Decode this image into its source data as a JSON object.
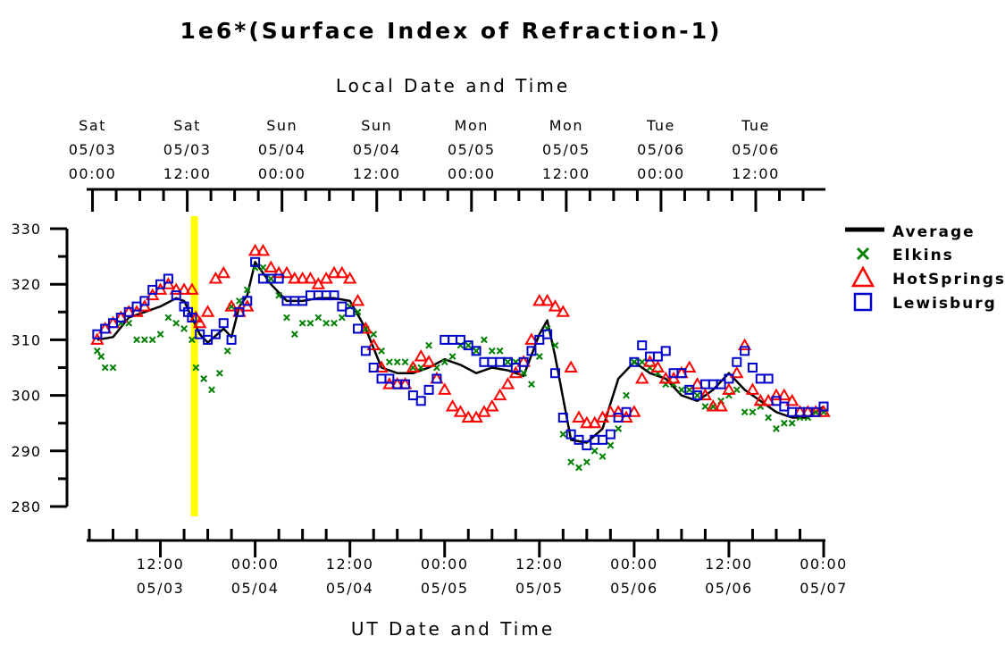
{
  "chart_data": {
    "type": "scatter",
    "title": "1e6*(Surface Index of Refraction-1)",
    "top_axis_label": "Local Date and Time",
    "xlabel": "UT Date and Time",
    "ylabel": "",
    "ylim": [
      280,
      330
    ],
    "yticks": [
      280,
      290,
      300,
      310,
      320,
      330
    ],
    "xlim": [
      "05/03 03:00",
      "05/07 00:00"
    ],
    "x_units": "UT hours from 05/03 00:00",
    "bottom_ticks": [
      {
        "time": "12:00",
        "date": "05/03",
        "hour": 12
      },
      {
        "time": "00:00",
        "date": "05/04",
        "hour": 24
      },
      {
        "time": "12:00",
        "date": "05/04",
        "hour": 36
      },
      {
        "time": "00:00",
        "date": "05/05",
        "hour": 48
      },
      {
        "time": "12:00",
        "date": "05/05",
        "hour": 60
      },
      {
        "time": "00:00",
        "date": "05/06",
        "hour": 72
      },
      {
        "time": "12:00",
        "date": "05/06",
        "hour": 84
      },
      {
        "time": "00:00",
        "date": "05/07",
        "hour": 96
      }
    ],
    "top_ticks": [
      {
        "day": "Sat",
        "date": "05/03",
        "time": "00:00",
        "hour": 3.4
      },
      {
        "day": "Sat",
        "date": "05/03",
        "time": "12:00",
        "hour": 15.4
      },
      {
        "day": "Sun",
        "date": "05/04",
        "time": "00:00",
        "hour": 27.4
      },
      {
        "day": "Sun",
        "date": "05/04",
        "time": "12:00",
        "hour": 39.4
      },
      {
        "day": "Mon",
        "date": "05/05",
        "time": "00:00",
        "hour": 51.4
      },
      {
        "day": "Mon",
        "date": "05/05",
        "time": "12:00",
        "hour": 63.4
      },
      {
        "day": "Tue",
        "date": "05/06",
        "time": "00:00",
        "hour": 75.4
      },
      {
        "day": "Tue",
        "date": "05/06",
        "time": "12:00",
        "hour": 87.4
      }
    ],
    "highlight": {
      "hour": 16.3,
      "color": "#ffff00"
    },
    "legend": {
      "placement": "right",
      "entries": [
        "Average",
        "Elkins",
        "HotSprings",
        "Lewisburg"
      ]
    },
    "series": [
      {
        "name": "Average",
        "style": "line",
        "color": "#000000",
        "x": [
          4,
          6,
          8,
          10,
          12,
          14,
          15,
          16,
          17,
          18,
          20,
          21,
          22,
          23,
          24,
          26,
          28,
          30,
          32,
          34,
          36,
          38,
          40,
          42,
          44,
          46,
          48,
          50,
          52,
          54,
          56,
          58,
          60,
          61,
          62,
          64,
          66,
          68,
          70,
          72,
          74,
          76,
          78,
          80,
          82,
          84,
          86,
          88,
          90,
          92,
          94,
          96
        ],
        "y": [
          310,
          310.5,
          314,
          315,
          316,
          317.5,
          317,
          314,
          311,
          309.5,
          312,
          310.5,
          316,
          318,
          324,
          320,
          317,
          317,
          317.5,
          317.5,
          317,
          312,
          305,
          304,
          304,
          305,
          306.5,
          305.5,
          304,
          305,
          304.5,
          303.5,
          311,
          313.5,
          307,
          292,
          291.5,
          294,
          303,
          306,
          304,
          303,
          300,
          299,
          301,
          304,
          301,
          299,
          297,
          296,
          296,
          298
        ]
      },
      {
        "name": "Elkins",
        "style": "x",
        "color": "#008000",
        "x": [
          4,
          4.5,
          5,
          6,
          7,
          8,
          9,
          10,
          11,
          12,
          13,
          14,
          15,
          16,
          16.5,
          17.5,
          18.5,
          19.5,
          20.5,
          21,
          22,
          23,
          24,
          25,
          26,
          27,
          28,
          29,
          30,
          31,
          32,
          33,
          34,
          35,
          36,
          37,
          38,
          39,
          40,
          41,
          42,
          43,
          44,
          45,
          46,
          47,
          48,
          49,
          50,
          51,
          52,
          53,
          54,
          55,
          56,
          57,
          58,
          59,
          60,
          61,
          62,
          63,
          64,
          65,
          66,
          67,
          68,
          69,
          70,
          71,
          72,
          73,
          74,
          75,
          76,
          77,
          78,
          79,
          80,
          81,
          82,
          83,
          84,
          85,
          86,
          87,
          88,
          89,
          90,
          91,
          92,
          93,
          94,
          95,
          96
        ],
        "y": [
          308,
          307,
          305,
          305,
          313,
          313,
          310,
          310,
          310,
          311,
          314,
          313,
          312,
          310,
          305,
          303,
          301,
          304,
          308,
          316,
          317,
          319,
          323,
          323,
          321,
          318,
          314,
          311,
          313,
          313,
          314,
          313,
          313,
          314,
          316,
          315,
          312,
          311,
          308,
          306,
          306,
          306,
          305,
          305,
          309,
          305,
          306,
          307,
          309,
          309,
          308,
          310,
          308,
          308,
          306,
          306,
          304,
          302,
          307,
          312,
          309,
          293,
          288,
          287,
          288,
          290,
          289,
          291,
          294,
          300,
          306,
          306,
          305,
          304,
          302,
          302,
          301,
          301,
          300,
          298,
          298,
          299,
          300,
          301,
          297,
          297,
          298,
          296,
          294,
          295,
          295,
          296,
          296,
          297,
          297
        ]
      },
      {
        "name": "HotSprings",
        "style": "triangle",
        "color": "#ff0000",
        "x": [
          4,
          5,
          6,
          7,
          8,
          9,
          10,
          11,
          12,
          13,
          14,
          15,
          16,
          16.5,
          17,
          18,
          19,
          20,
          21,
          22,
          23,
          24,
          25,
          26,
          27,
          28,
          29,
          30,
          31,
          32,
          33,
          34,
          35,
          36,
          37,
          38,
          39,
          40,
          41,
          42,
          43,
          44,
          45,
          46,
          47,
          48,
          49,
          50,
          51,
          52,
          53,
          54,
          55,
          56,
          57,
          58,
          59,
          60,
          61,
          62,
          63,
          64,
          65,
          66,
          67,
          68,
          69,
          70,
          71,
          72,
          73,
          74,
          75,
          76,
          77,
          78,
          79,
          80,
          81,
          82,
          83,
          84,
          85,
          86,
          87,
          88,
          89,
          90,
          91,
          92,
          93,
          94,
          95,
          96
        ],
        "y": [
          310,
          312,
          313,
          314,
          315,
          315,
          316,
          318,
          319,
          320,
          319,
          319,
          319,
          314,
          313,
          315,
          321,
          322,
          316,
          315,
          316,
          326,
          326,
          323,
          322,
          322,
          321,
          321,
          321,
          320,
          321,
          322,
          322,
          321,
          317,
          312,
          309,
          305,
          302,
          302,
          302,
          305,
          307,
          306,
          303,
          301,
          298,
          297,
          296,
          296,
          297,
          298,
          300,
          302,
          304,
          306,
          310,
          317,
          317,
          316,
          315,
          305,
          296,
          295,
          295,
          296,
          297,
          297,
          296,
          297,
          303,
          306,
          305,
          303,
          303,
          304,
          305,
          302,
          300,
          298,
          298,
          301,
          304,
          309,
          301,
          299,
          299,
          300,
          300,
          299,
          297,
          297,
          297,
          297
        ]
      },
      {
        "name": "Lewisburg",
        "style": "square",
        "color": "#0000cc",
        "x": [
          4,
          5,
          6,
          7,
          8,
          9,
          10,
          11,
          12,
          13,
          14,
          15,
          15.5,
          16,
          17,
          18,
          19,
          20,
          21,
          22,
          23,
          24,
          25,
          26,
          27,
          28,
          29,
          30,
          31,
          32,
          33,
          34,
          35,
          36,
          37,
          38,
          39,
          40,
          41,
          42,
          43,
          44,
          45,
          46,
          47,
          48,
          49,
          50,
          51,
          52,
          53,
          54,
          55,
          56,
          57,
          58,
          59,
          60,
          61,
          62,
          63,
          64,
          65,
          66,
          67,
          68,
          69,
          70,
          71,
          72,
          73,
          74,
          75,
          76,
          77,
          78,
          79,
          80,
          81,
          82,
          83,
          84,
          85,
          86,
          87,
          88,
          89,
          90,
          91,
          92,
          93,
          94,
          95,
          96
        ],
        "y": [
          311,
          312,
          313,
          314,
          315,
          316,
          317,
          319,
          320,
          321,
          318,
          316,
          315,
          314,
          311,
          310,
          311,
          313,
          310,
          315,
          317,
          324,
          321,
          321,
          321,
          317,
          317,
          317,
          318,
          318,
          318,
          318,
          316,
          315,
          312,
          308,
          305,
          303,
          303,
          302,
          302,
          300,
          299,
          301,
          303,
          310,
          310,
          310,
          309,
          308,
          306,
          306,
          306,
          306,
          305,
          306,
          308,
          310,
          311,
          304,
          296,
          293,
          292,
          291,
          292,
          292,
          293,
          296,
          297,
          306,
          309,
          307,
          307,
          308,
          304,
          304,
          301,
          300,
          302,
          302,
          302,
          303,
          306,
          308,
          305,
          303,
          303,
          299,
          298,
          297,
          297,
          297,
          297,
          298
        ]
      }
    ]
  }
}
